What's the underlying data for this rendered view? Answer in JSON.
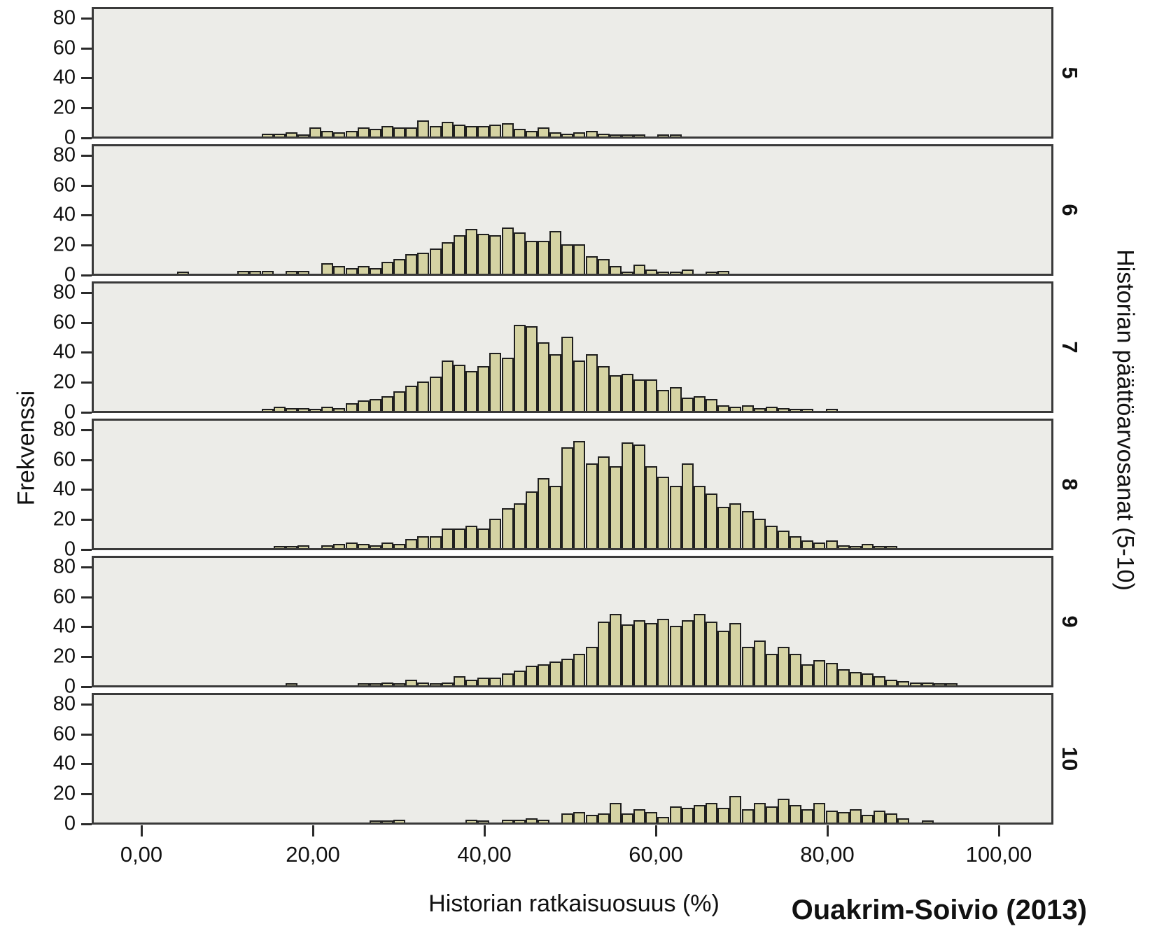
{
  "figure": {
    "ylabel": "Frekvenssi",
    "xlabel": "Historian ratkaisuosuus (%)",
    "right_axis_label": "Historian päättöarvosanat (5-10)",
    "citation": "Ouakrim-Soivio (2013)",
    "colors": {
      "bar_fill": "#d5d3a3",
      "bar_border": "#1f1f1f",
      "panel_bg": "#ecece8",
      "panel_border": "#3a3a3a"
    }
  },
  "chart_data": {
    "type": "bar",
    "subtype": "paneled-histogram",
    "title": "",
    "xlabel": "Historian ratkaisuosuus (%)",
    "ylabel": "Frekvenssi",
    "panel_variable": "Historian päättöarvosanat (5-10)",
    "annotation": "Ouakrim-Soivio (2013)",
    "grid": false,
    "legend": "none",
    "xlim": [
      -5.8,
      106.4
    ],
    "ylim": [
      0,
      88
    ],
    "y_ticks": [
      80,
      60,
      40,
      20,
      0
    ],
    "x_ticks": {
      "values": [
        0,
        20,
        40,
        60,
        80,
        100
      ],
      "labels": [
        "0,00",
        "20,00",
        "40,00",
        "60,00",
        "80,00",
        "100,00"
      ]
    },
    "bin_width": 1.4,
    "panels": [
      {
        "label": "5",
        "bin_start": 14.0,
        "frequencies": [
          2,
          2,
          3,
          1,
          6,
          4,
          3,
          4,
          6,
          5,
          7,
          6,
          6,
          11,
          7,
          10,
          8,
          7,
          7,
          8,
          9,
          5,
          4,
          6,
          3,
          2,
          3,
          4,
          2,
          1,
          1,
          1,
          0,
          1,
          1
        ]
      },
      {
        "label": "6",
        "bin_start": 4.2,
        "frequencies": [
          1,
          0,
          0,
          0,
          0,
          2,
          2,
          2,
          0,
          2,
          2,
          0,
          7,
          5,
          4,
          5,
          4,
          8,
          10,
          13,
          14,
          17,
          21,
          26,
          30,
          27,
          26,
          31,
          28,
          22,
          22,
          29,
          20,
          20,
          12,
          10,
          5,
          1,
          6,
          3,
          1,
          1,
          3,
          0,
          1,
          2
        ]
      },
      {
        "label": "7",
        "bin_start": 14.0,
        "frequencies": [
          1,
          3,
          2,
          2,
          1,
          3,
          2,
          5,
          7,
          8,
          10,
          13,
          17,
          20,
          23,
          34,
          31,
          27,
          30,
          39,
          36,
          58,
          57,
          46,
          38,
          50,
          34,
          38,
          30,
          24,
          25,
          21,
          21,
          14,
          16,
          9,
          10,
          8,
          4,
          3,
          4,
          2,
          3,
          2,
          1,
          1,
          0,
          1
        ]
      },
      {
        "label": "8",
        "bin_start": 15.4,
        "frequencies": [
          1,
          1,
          2,
          0,
          2,
          3,
          4,
          3,
          2,
          4,
          3,
          6,
          8,
          8,
          13,
          13,
          15,
          13,
          20,
          27,
          30,
          38,
          47,
          42,
          68,
          72,
          57,
          62,
          55,
          71,
          70,
          55,
          48,
          42,
          57,
          42,
          37,
          28,
          30,
          25,
          20,
          15,
          12,
          8,
          5,
          4,
          5,
          2,
          1,
          3,
          1,
          1
        ]
      },
      {
        "label": "9",
        "bin_start": 16.8,
        "frequencies": [
          1,
          0,
          0,
          0,
          0,
          0,
          1,
          1,
          2,
          1,
          4,
          2,
          1,
          2,
          6,
          4,
          5,
          5,
          8,
          10,
          13,
          14,
          16,
          18,
          21,
          26,
          43,
          48,
          41,
          44,
          42,
          45,
          40,
          44,
          48,
          43,
          37,
          42,
          26,
          30,
          21,
          26,
          21,
          14,
          17,
          15,
          11,
          9,
          8,
          6,
          4,
          3,
          2,
          2,
          1,
          1
        ]
      },
      {
        "label": "10",
        "bin_start": 26.6,
        "frequencies": [
          1,
          1,
          2,
          0,
          0,
          0,
          0,
          0,
          2,
          1,
          0,
          2,
          2,
          3,
          2,
          0,
          6,
          7,
          5,
          6,
          13,
          6,
          9,
          7,
          4,
          11,
          10,
          12,
          13,
          10,
          18,
          9,
          13,
          11,
          16,
          12,
          9,
          13,
          8,
          7,
          9,
          5,
          8,
          6,
          3,
          0,
          1
        ]
      }
    ]
  }
}
